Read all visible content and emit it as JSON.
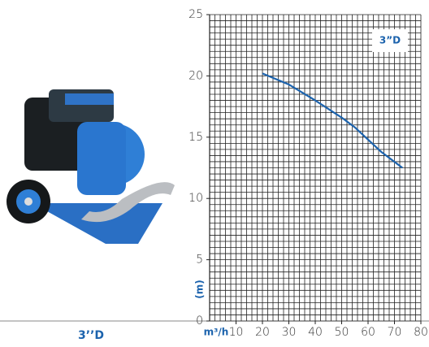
{
  "chart_data": {
    "type": "line",
    "x": [
      20,
      30,
      40,
      50,
      55,
      60,
      65,
      73
    ],
    "values": [
      20.2,
      19.3,
      18,
      16.6,
      15.8,
      14.8,
      13.8,
      12.5
    ],
    "color": "#1c63ad",
    "xlim": [
      0,
      80
    ],
    "xticks": [
      10,
      20,
      30,
      40,
      50,
      60,
      70,
      80
    ],
    "ylim": [
      0,
      25
    ],
    "yticks": [
      0,
      5,
      10,
      15,
      20,
      25
    ],
    "x_label": "m³/h",
    "y_label": "(m)",
    "annotation": "3”D",
    "grid": true
  },
  "caption": "3’’D"
}
